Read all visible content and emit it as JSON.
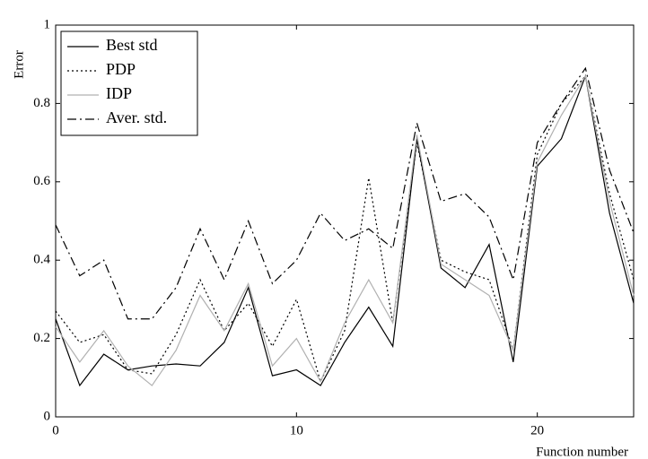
{
  "chart_data": {
    "type": "line",
    "x_label": "Function number",
    "y_label": "Error",
    "x": [
      0,
      1,
      2,
      3,
      4,
      5,
      6,
      7,
      8,
      9,
      10,
      11,
      12,
      13,
      14,
      15,
      16,
      17,
      18,
      19,
      20,
      21,
      22,
      23,
      24
    ],
    "series": [
      {
        "name": "Best std",
        "color": "#000000",
        "style": "solid",
        "values": [
          0.25,
          0.08,
          0.16,
          0.12,
          0.13,
          0.135,
          0.13,
          0.19,
          0.33,
          0.105,
          0.12,
          0.08,
          0.19,
          0.28,
          0.18,
          0.71,
          0.38,
          0.33,
          0.44,
          0.14,
          0.64,
          0.71,
          0.87,
          0.52,
          0.29
        ]
      },
      {
        "name": "PDP",
        "color": "#000000",
        "style": "dotted",
        "values": [
          0.27,
          0.19,
          0.21,
          0.12,
          0.11,
          0.21,
          0.35,
          0.22,
          0.29,
          0.18,
          0.3,
          0.09,
          0.22,
          0.61,
          0.24,
          0.7,
          0.4,
          0.37,
          0.35,
          0.17,
          0.67,
          0.8,
          0.87,
          0.57,
          0.35
        ]
      },
      {
        "name": "IDP",
        "color": "#b0b0b0",
        "style": "solid",
        "values": [
          0.23,
          0.14,
          0.22,
          0.13,
          0.08,
          0.17,
          0.31,
          0.22,
          0.34,
          0.13,
          0.2,
          0.09,
          0.24,
          0.35,
          0.24,
          0.72,
          0.39,
          0.35,
          0.31,
          0.17,
          0.65,
          0.77,
          0.87,
          0.55,
          0.31
        ]
      },
      {
        "name": "Aver. std.",
        "color": "#000000",
        "style": "dashdot",
        "values": [
          0.49,
          0.36,
          0.4,
          0.25,
          0.25,
          0.33,
          0.48,
          0.35,
          0.5,
          0.34,
          0.4,
          0.52,
          0.45,
          0.48,
          0.43,
          0.75,
          0.55,
          0.57,
          0.51,
          0.35,
          0.7,
          0.8,
          0.89,
          0.63,
          0.47
        ]
      }
    ],
    "xlim": [
      0,
      24
    ],
    "xticks": [
      0,
      10,
      20
    ],
    "ylim": [
      0,
      1
    ],
    "yticks": [
      0,
      0.2,
      0.4,
      0.6,
      0.8,
      1
    ],
    "grid": false,
    "legend": "upper-left"
  }
}
